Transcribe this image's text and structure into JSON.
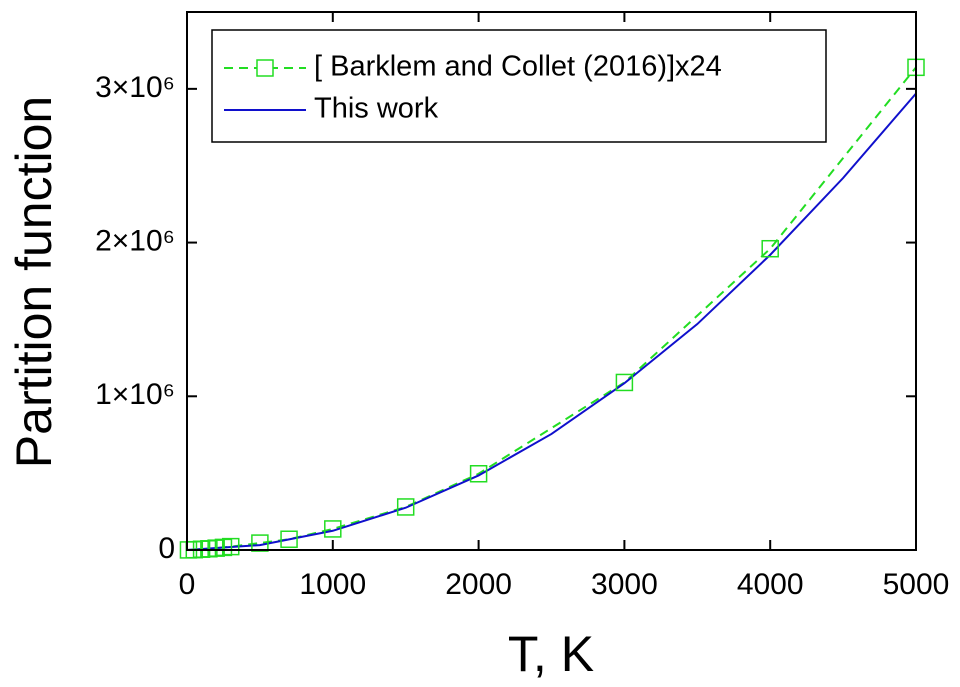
{
  "chart_data": {
    "type": "line",
    "xlabel": "T, K",
    "ylabel": "Partition function",
    "xlim": [
      0,
      5000
    ],
    "ylim": [
      0,
      3500000
    ],
    "xticks": [
      0,
      1000,
      2000,
      3000,
      4000,
      5000
    ],
    "yticks": [
      0,
      {
        "value": 1000000,
        "label": "1×10⁶"
      },
      {
        "value": 2000000,
        "label": "2×10⁶"
      },
      {
        "value": 3000000,
        "label": "3×10⁶"
      }
    ],
    "legend": "upper left",
    "series": [
      {
        "name": "[ Barklem and Collet (2016)]x24",
        "color": "#22dd22",
        "dash": true,
        "marker": "square",
        "x": [
          10,
          50,
          100,
          150,
          200,
          250,
          300,
          500,
          700,
          1000,
          1500,
          2000,
          3000,
          4000,
          5000
        ],
        "values": [
          500,
          2000,
          5000,
          8000,
          12000,
          17000,
          22000,
          45000,
          70000,
          137000,
          280000,
          496000,
          1090000,
          1960000,
          3140000
        ]
      },
      {
        "name": "This work",
        "color": "#1010cc",
        "dash": false,
        "marker": null,
        "x": [
          0,
          500,
          1000,
          1500,
          2000,
          2500,
          3000,
          3500,
          4000,
          4500,
          5000
        ],
        "values": [
          0,
          32000,
          125000,
          275000,
          485000,
          755000,
          1085000,
          1470000,
          1920000,
          2420000,
          2970000
        ]
      }
    ]
  }
}
